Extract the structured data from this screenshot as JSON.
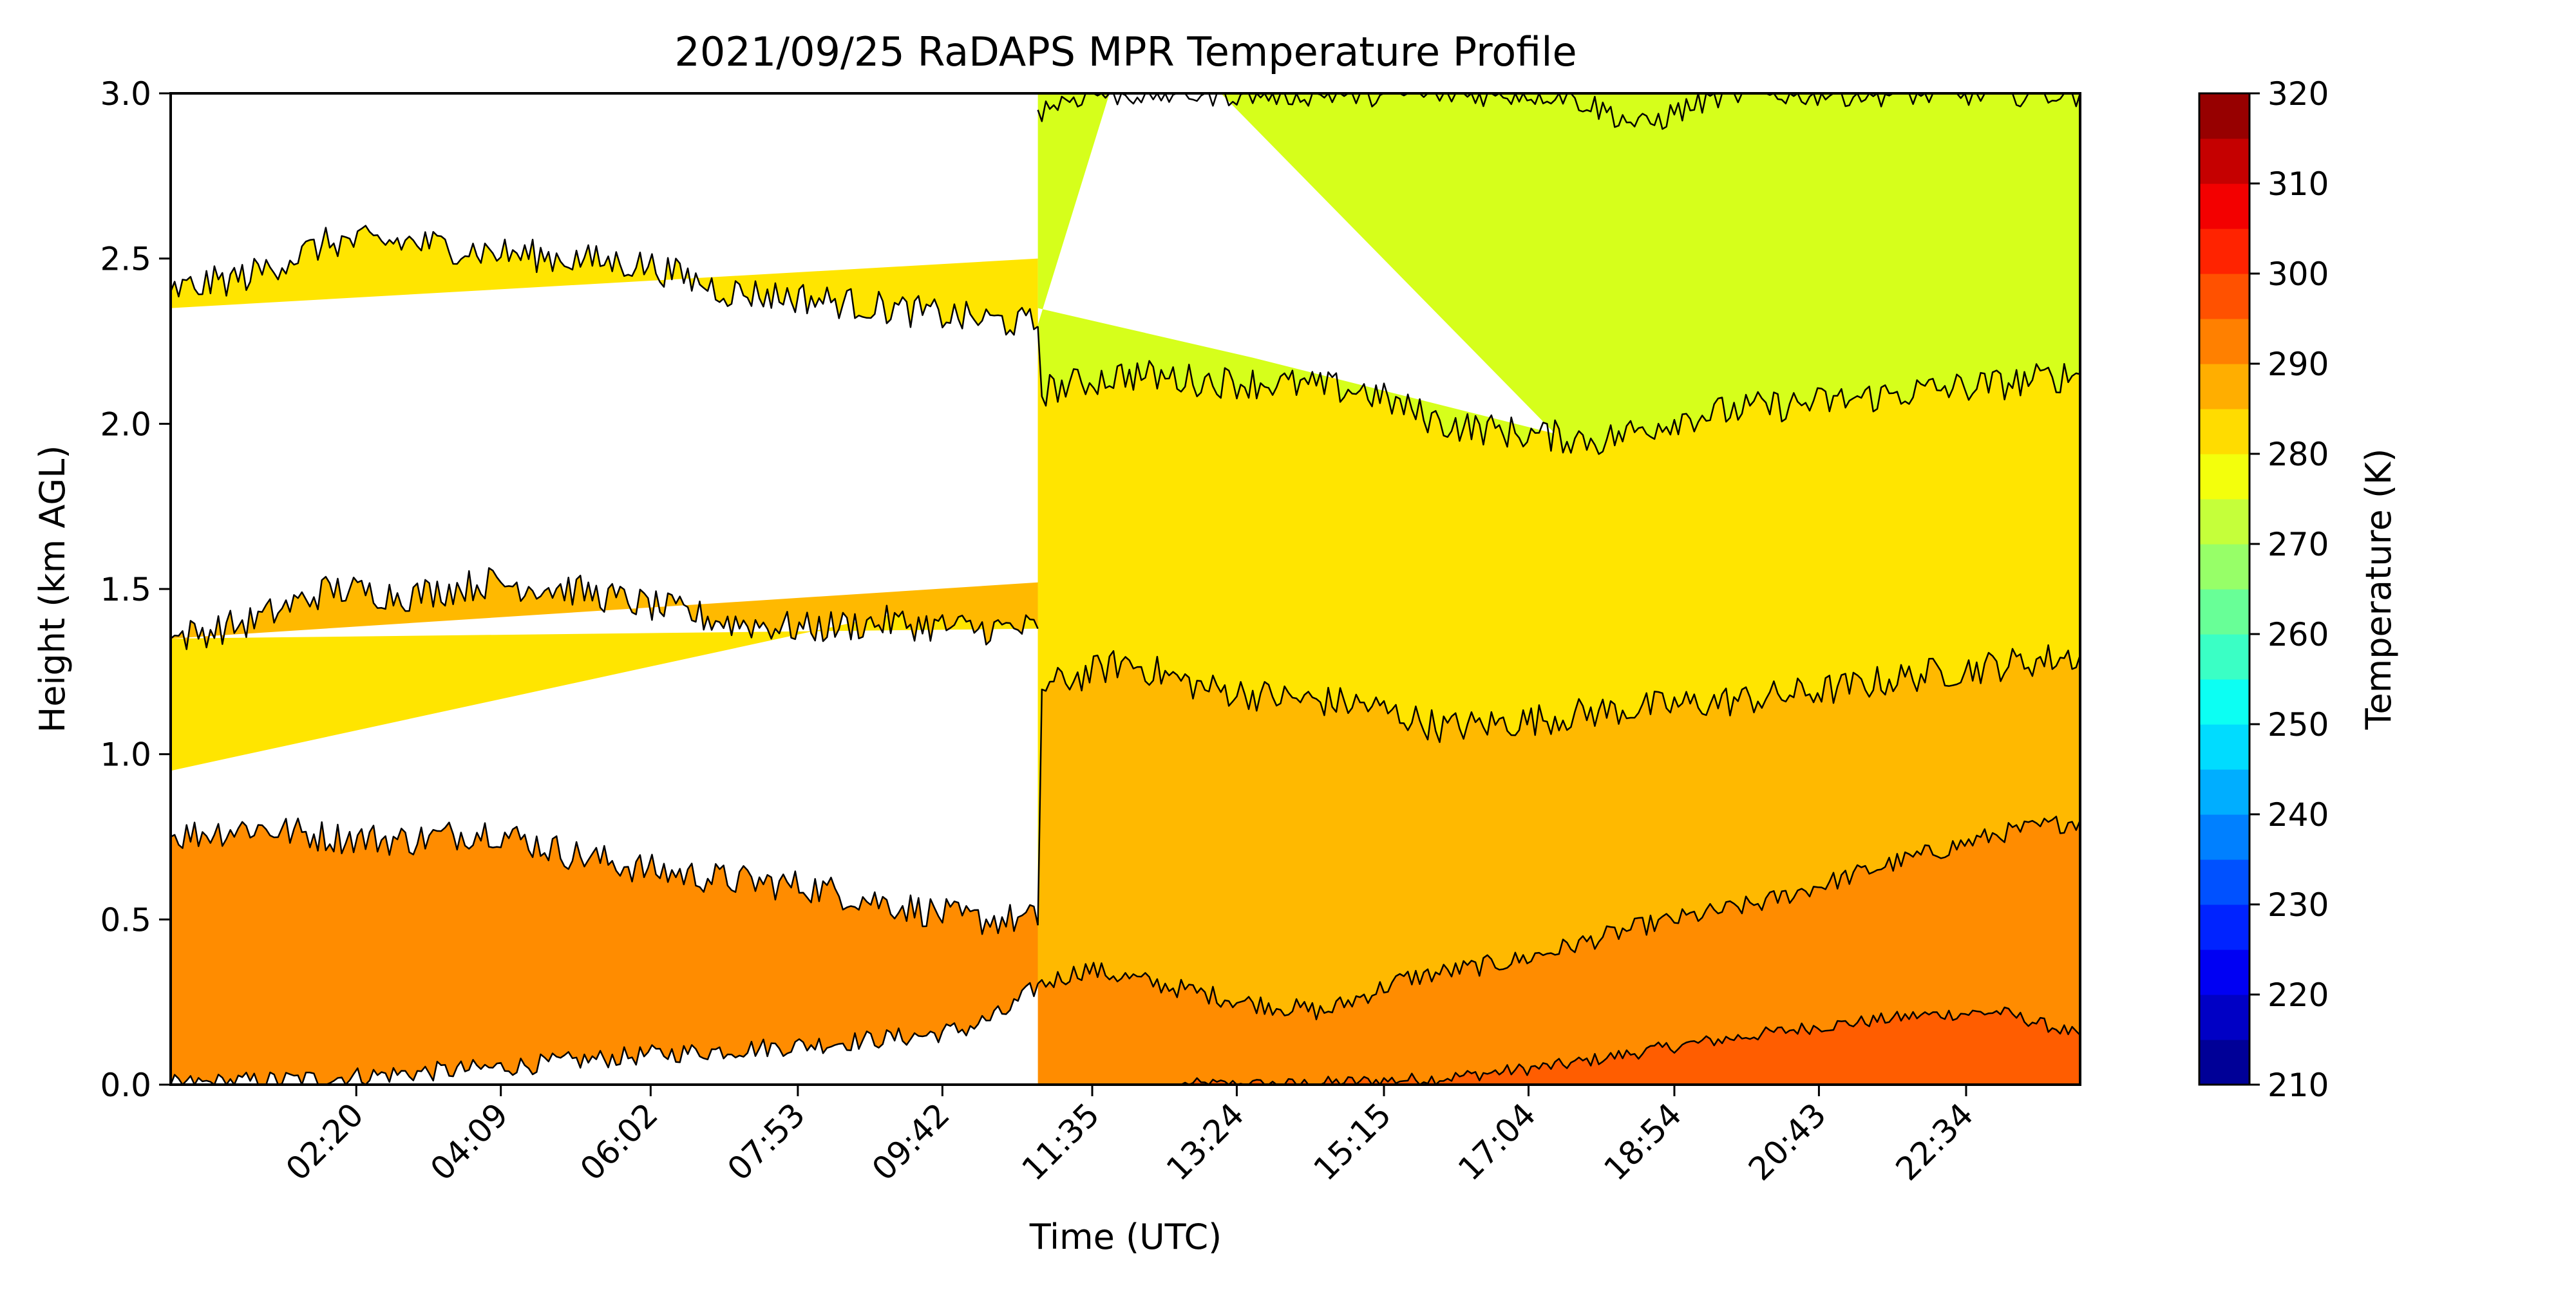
{
  "chart_data": {
    "type": "contourf",
    "title": "2021/09/25 RaDAPS MPR Temperature Profile",
    "xlabel": "Time (UTC)",
    "ylabel": "Height (km AGL)",
    "xlim": [
      0,
      24
    ],
    "ylim": [
      0,
      3.0
    ],
    "x_ticks": [
      {
        "label": "02:20",
        "hours": 2.333
      },
      {
        "label": "04:09",
        "hours": 4.15
      },
      {
        "label": "06:02",
        "hours": 6.033
      },
      {
        "label": "07:53",
        "hours": 7.883
      },
      {
        "label": "09:42",
        "hours": 9.7
      },
      {
        "label": "11:35",
        "hours": 11.583
      },
      {
        "label": "13:24",
        "hours": 13.4
      },
      {
        "label": "15:15",
        "hours": 15.25
      },
      {
        "label": "17:04",
        "hours": 17.067
      },
      {
        "label": "18:54",
        "hours": 18.9
      },
      {
        "label": "20:43",
        "hours": 20.717
      },
      {
        "label": "22:34",
        "hours": 22.567
      }
    ],
    "y_ticks": [
      "0.0",
      "0.5",
      "1.0",
      "1.5",
      "2.0",
      "2.5",
      "3.0"
    ],
    "y_tick_values": [
      0,
      0.5,
      1.0,
      1.5,
      2.0,
      2.5,
      3.0
    ],
    "data_gap_hours": 10.9,
    "colorbar": {
      "label": "Temperature (K)",
      "range": [
        210,
        320
      ],
      "step": 5,
      "tick_labels": [
        "210",
        "220",
        "230",
        "240",
        "250",
        "260",
        "270",
        "280",
        "290",
        "300",
        "310",
        "320"
      ],
      "tick_values": [
        210,
        220,
        230,
        240,
        250,
        260,
        270,
        280,
        290,
        300,
        310,
        320
      ]
    },
    "band_colors": {
      "275-280": "#d6ff1b",
      "280-285": "#ffe500",
      "285-290": "#ffb900",
      "290-295": "#ff8c00",
      "295-300": "#ff5d00"
    },
    "isotherm_profiles": [
      {
        "level_k": 295,
        "points": [
          [
            12.7,
            0
          ],
          [
            14,
            0
          ],
          [
            16,
            0.02
          ],
          [
            17.5,
            0.06
          ],
          [
            19,
            0.12
          ],
          [
            20.5,
            0.17
          ],
          [
            22,
            0.21
          ],
          [
            23,
            0.22
          ],
          [
            24,
            0.15
          ]
        ]
      },
      {
        "level_k": 290,
        "points": [
          [
            0,
            0
          ],
          [
            2,
            0.02
          ],
          [
            4,
            0.05
          ],
          [
            6,
            0.09
          ],
          [
            8,
            0.12
          ],
          [
            9.5,
            0.15
          ],
          [
            10,
            0.17
          ],
          [
            10.5,
            0.22
          ],
          [
            10.9,
            0.3
          ],
          [
            11.5,
            0.35
          ],
          [
            12.5,
            0.3
          ],
          [
            13.5,
            0.25
          ],
          [
            14.5,
            0.22
          ],
          [
            15.5,
            0.32
          ],
          [
            17,
            0.38
          ],
          [
            18.5,
            0.48
          ],
          [
            20,
            0.55
          ],
          [
            21.5,
            0.66
          ],
          [
            23,
            0.76
          ],
          [
            24,
            0.8
          ]
        ]
      },
      {
        "level_k": 285,
        "points": [
          [
            0,
            0.75
          ],
          [
            1,
            0.78
          ],
          [
            2,
            0.75
          ],
          [
            3,
            0.74
          ],
          [
            4,
            0.77
          ],
          [
            5,
            0.7
          ],
          [
            6,
            0.65
          ],
          [
            7,
            0.62
          ],
          [
            8,
            0.6
          ],
          [
            9,
            0.55
          ],
          [
            10,
            0.5
          ],
          [
            10.9,
            0.5
          ],
          [
            10.95,
            1.2
          ],
          [
            12,
            1.28
          ],
          [
            13,
            1.2
          ],
          [
            14,
            1.17
          ],
          [
            15,
            1.15
          ],
          [
            16,
            1.08
          ],
          [
            17,
            1.1
          ],
          [
            18,
            1.13
          ],
          [
            19,
            1.15
          ],
          [
            20,
            1.17
          ],
          [
            21,
            1.2
          ],
          [
            22,
            1.24
          ],
          [
            23,
            1.27
          ],
          [
            24,
            1.3
          ]
        ]
      },
      {
        "level_k": 285,
        "points": [
          [
            0,
            1.35
          ],
          [
            1,
            1.4
          ],
          [
            2,
            1.5
          ],
          [
            3,
            1.48
          ],
          [
            4,
            1.52
          ],
          [
            5,
            1.5
          ],
          [
            6,
            1.45
          ],
          [
            7,
            1.4
          ],
          [
            8,
            1.38
          ],
          [
            9,
            1.4
          ],
          [
            10,
            1.38
          ],
          [
            10.9,
            1.38
          ]
        ]
      },
      {
        "level_k": 280,
        "points": [
          [
            0,
            2.4
          ],
          [
            1,
            2.45
          ],
          [
            2,
            2.55
          ],
          [
            3,
            2.55
          ],
          [
            4,
            2.52
          ],
          [
            5,
            2.5
          ],
          [
            6,
            2.48
          ],
          [
            7,
            2.4
          ],
          [
            8,
            2.38
          ],
          [
            9,
            2.35
          ],
          [
            10,
            2.32
          ],
          [
            10.9,
            2.3
          ],
          [
            10.95,
            2.1
          ],
          [
            12,
            2.15
          ],
          [
            13,
            2.13
          ],
          [
            14,
            2.12
          ],
          [
            15,
            2.1
          ],
          [
            16,
            2.0
          ],
          [
            17,
            1.97
          ],
          [
            18,
            1.95
          ],
          [
            19,
            2.02
          ],
          [
            20,
            2.05
          ],
          [
            21,
            2.07
          ],
          [
            22,
            2.1
          ],
          [
            23,
            2.12
          ],
          [
            24,
            2.15
          ]
        ]
      },
      {
        "level_k": 275,
        "points": [
          [
            10.9,
            2.95
          ],
          [
            11.5,
            3.0
          ],
          [
            12.5,
            3.0
          ],
          [
            13.5,
            3.0
          ],
          [
            14.5,
            3.0
          ],
          [
            15.5,
            3.0
          ],
          [
            16.5,
            3.0
          ],
          [
            17.5,
            3.0
          ],
          [
            18.5,
            2.9
          ],
          [
            19.5,
            3.0
          ],
          [
            20.5,
            3.0
          ],
          [
            21.5,
            3.0
          ],
          [
            22.5,
            3.0
          ],
          [
            24,
            3.0
          ]
        ]
      }
    ]
  }
}
